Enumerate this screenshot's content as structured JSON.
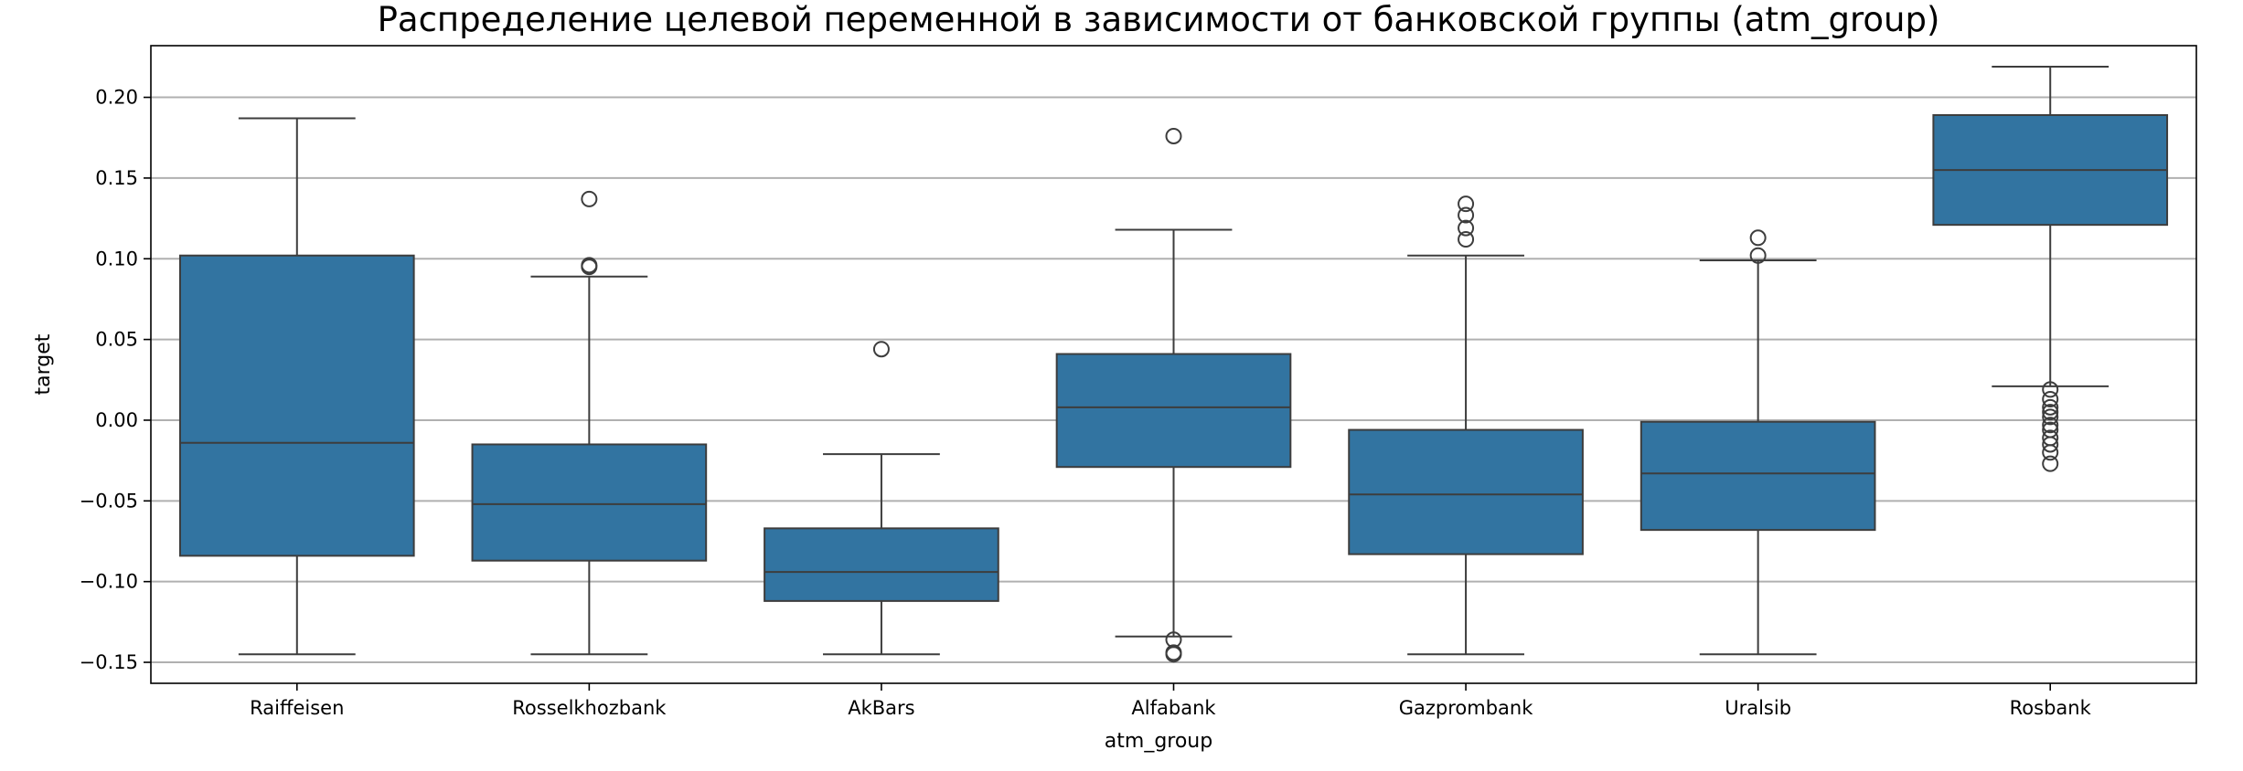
{
  "chart_data": {
    "type": "box",
    "title": "Распределение целевой переменной в зависимости от банковской группы (atm_group)",
    "xlabel": "atm_group",
    "ylabel": "target",
    "ylim": [
      -0.163,
      0.232
    ],
    "yticks": [
      {
        "value": -0.15,
        "label": "−0.15"
      },
      {
        "value": -0.1,
        "label": "−0.10"
      },
      {
        "value": -0.05,
        "label": "−0.05"
      },
      {
        "value": 0.0,
        "label": "0.00"
      },
      {
        "value": 0.05,
        "label": "0.05"
      },
      {
        "value": 0.1,
        "label": "0.10"
      },
      {
        "value": 0.15,
        "label": "0.15"
      },
      {
        "value": 0.2,
        "label": "0.20"
      }
    ],
    "grid": "y",
    "box_color": "#3274a1",
    "categories": [
      "Raiffeisen",
      "Rosselkhozbank",
      "AkBars",
      "Alfabank",
      "Gazprombank",
      "Uralsib",
      "Rosbank"
    ],
    "boxes": [
      {
        "name": "Raiffeisen",
        "whisker_low": -0.145,
        "q1": -0.084,
        "median": -0.014,
        "q3": 0.102,
        "whisker_high": 0.187,
        "outliers": []
      },
      {
        "name": "Rosselkhozbank",
        "whisker_low": -0.145,
        "q1": -0.087,
        "median": -0.052,
        "q3": -0.015,
        "whisker_high": 0.089,
        "outliers": [
          0.095,
          0.096,
          0.137
        ]
      },
      {
        "name": "AkBars",
        "whisker_low": -0.145,
        "q1": -0.112,
        "median": -0.094,
        "q3": -0.067,
        "whisker_high": -0.021,
        "outliers": [
          0.044
        ]
      },
      {
        "name": "Alfabank",
        "whisker_low": -0.134,
        "q1": -0.029,
        "median": 0.008,
        "q3": 0.041,
        "whisker_high": 0.118,
        "outliers": [
          -0.136,
          -0.144,
          -0.145,
          0.176
        ]
      },
      {
        "name": "Gazprombank",
        "whisker_low": -0.145,
        "q1": -0.083,
        "median": -0.046,
        "q3": -0.006,
        "whisker_high": 0.102,
        "outliers": [
          0.112,
          0.119,
          0.127,
          0.134
        ]
      },
      {
        "name": "Uralsib",
        "whisker_low": -0.145,
        "q1": -0.068,
        "median": -0.033,
        "q3": -0.001,
        "whisker_high": 0.099,
        "outliers": [
          0.102,
          0.113
        ]
      },
      {
        "name": "Rosbank",
        "whisker_low": 0.021,
        "q1": 0.121,
        "median": 0.155,
        "q3": 0.189,
        "whisker_high": 0.219,
        "outliers": [
          0.019,
          0.013,
          0.008,
          0.005,
          0.002,
          -0.003,
          -0.006,
          -0.011,
          -0.015,
          -0.02,
          -0.027
        ]
      }
    ]
  }
}
